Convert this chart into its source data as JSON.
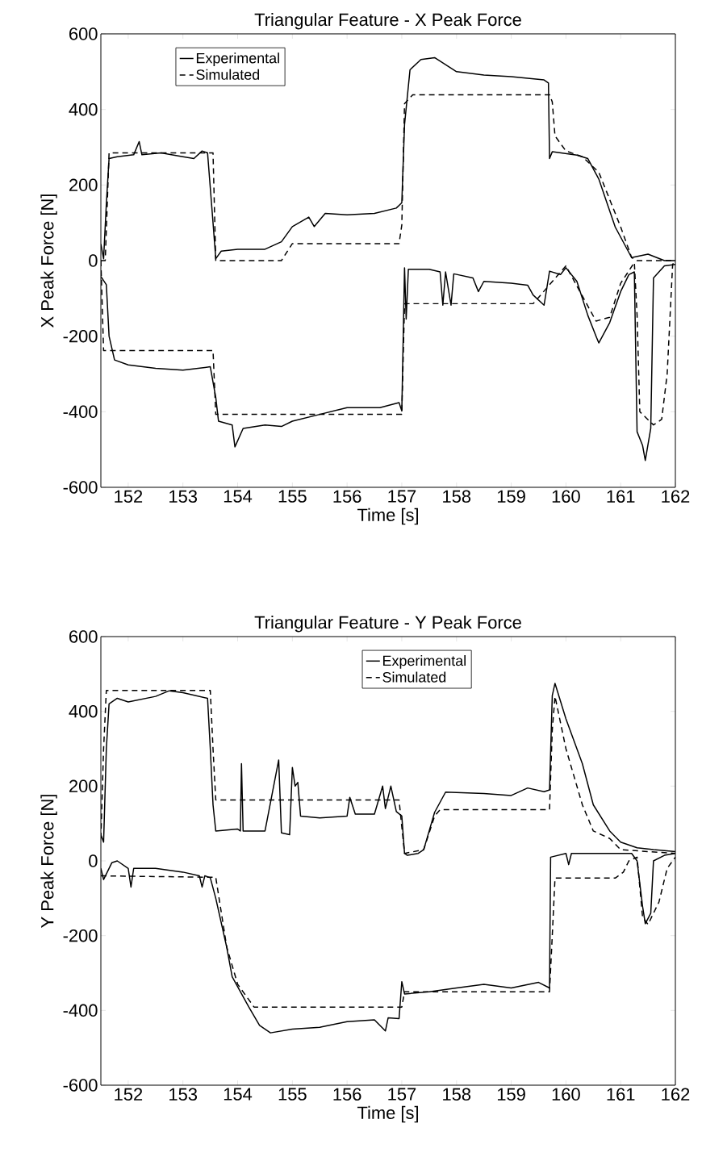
{
  "chart_data": [
    {
      "type": "line",
      "title": "Triangular Feature - X Peak Force",
      "xlabel": "Time [s]",
      "ylabel": "X Peak Force [N]",
      "xlim": [
        151.5,
        162
      ],
      "ylim": [
        -600,
        600
      ],
      "xticks": [
        152,
        153,
        154,
        155,
        156,
        157,
        158,
        159,
        160,
        161,
        162
      ],
      "yticks": [
        -600,
        -400,
        -200,
        0,
        200,
        400,
        600
      ],
      "legend": "top left",
      "grid": false,
      "series": [
        {
          "name": "Experimental",
          "color": "#000000",
          "line_style": "solid",
          "x": [
            151.5,
            151.55,
            151.6,
            151.65,
            151.8,
            152.1,
            152.2,
            152.25,
            152.6,
            153.0,
            153.2,
            153.35,
            153.45,
            153.55,
            153.6,
            153.7,
            154.0,
            154.5,
            154.8,
            155.0,
            155.3,
            155.4,
            155.6,
            156.0,
            156.5,
            156.9,
            157.0,
            157.05,
            157.15,
            157.35,
            157.6,
            158.0,
            158.5,
            159.0,
            159.6,
            159.68,
            159.7,
            159.75,
            160.2,
            160.4,
            160.6,
            160.9,
            161.2,
            161.5,
            161.8,
            162.0
          ],
          "values": [
            44,
            5,
            150,
            270,
            275,
            280,
            315,
            280,
            285,
            275,
            270,
            290,
            285,
            100,
            5,
            25,
            30,
            30,
            50,
            90,
            115,
            90,
            125,
            121,
            125,
            139,
            153,
            360,
            505,
            532,
            537,
            500,
            491,
            487,
            478,
            470,
            270,
            288,
            279,
            270,
            216,
            89,
            8,
            17,
            0,
            0
          ]
        },
        {
          "color": "#000000",
          "line_style": "solid",
          "x": [
            151.5,
            151.6,
            151.65,
            151.75,
            152.0,
            152.5,
            153.0,
            153.5,
            153.6,
            153.65,
            153.9,
            153.95,
            154.1,
            154.5,
            154.8,
            155.0,
            155.5,
            156.0,
            156.6,
            156.95,
            157.0,
            157.05,
            157.08,
            157.12,
            157.5,
            157.7,
            157.75,
            157.8,
            157.9,
            157.95,
            158.3,
            158.4,
            158.5,
            159.0,
            159.3,
            159.4,
            159.6,
            159.7,
            159.9,
            160.0,
            160.2,
            160.4,
            160.55,
            160.6,
            160.8,
            161.0,
            161.15,
            161.25,
            161.3,
            161.4,
            161.45,
            161.55,
            161.6,
            161.8,
            162.0
          ],
          "values": [
            -42,
            -64,
            -200,
            -263,
            -276,
            -285,
            -290,
            -281,
            -362,
            -425,
            -435,
            -493,
            -444,
            -435,
            -439,
            -425,
            -407,
            -389,
            -389,
            -376,
            -398,
            -19,
            -155,
            -23,
            -23,
            -30,
            -118,
            -30,
            -118,
            -35,
            -46,
            -82,
            -55,
            -60,
            -65,
            -91,
            -118,
            -28,
            -37,
            -19,
            -55,
            -145,
            -200,
            -218,
            -164,
            -82,
            -37,
            -30,
            -453,
            -489,
            -529,
            -444,
            -46,
            -14,
            -10
          ]
        },
        {
          "name": "Simulated",
          "color": "#000000",
          "line_style": "dashed",
          "x": [
            151.5,
            151.58,
            151.65,
            153.55,
            153.6,
            154.8,
            155.0,
            156.95,
            157.0,
            157.05,
            157.2,
            159.7,
            159.75,
            159.8,
            160.0,
            160.3,
            160.6,
            161.0,
            161.2,
            161.3,
            162.0
          ],
          "values": [
            0,
            0,
            285,
            285,
            0,
            0,
            45,
            45,
            94,
            415,
            439,
            439,
            420,
            330,
            290,
            275,
            234,
            89,
            8,
            0,
            0
          ]
        },
        {
          "color": "#000000",
          "line_style": "dashed",
          "x": [
            151.5,
            151.55,
            153.55,
            153.6,
            157.0,
            157.05,
            159.4,
            160.0,
            160.55,
            160.8,
            161.0,
            161.25,
            161.3,
            161.35,
            161.6,
            161.75,
            161.85,
            161.95,
            162.0
          ],
          "values": [
            0,
            -238,
            -238,
            -407,
            -407,
            -114,
            -114,
            -14,
            -160,
            -150,
            -60,
            -5,
            -145,
            -400,
            -435,
            -420,
            -300,
            -10,
            0
          ]
        }
      ]
    },
    {
      "type": "line",
      "title": "Triangular Feature -  Y Peak Force",
      "xlabel": "Time [s]",
      "ylabel": "Y Peak Force [N]",
      "xlim": [
        151.5,
        162
      ],
      "ylim": [
        -600,
        600
      ],
      "xticks": [
        152,
        153,
        154,
        155,
        156,
        157,
        158,
        159,
        160,
        161,
        162
      ],
      "yticks": [
        -600,
        -400,
        -200,
        0,
        200,
        400,
        600
      ],
      "legend": "top",
      "grid": false,
      "series": [
        {
          "name": "Experimental",
          "color": "#000000",
          "line_style": "solid",
          "x": [
            151.5,
            151.55,
            151.6,
            151.65,
            151.8,
            152.0,
            152.5,
            152.75,
            153.0,
            153.3,
            153.45,
            153.5,
            153.55,
            153.6,
            154.0,
            154.05,
            154.07,
            154.1,
            154.5,
            154.75,
            154.8,
            154.95,
            155.0,
            155.05,
            155.1,
            155.15,
            155.5,
            156.0,
            156.05,
            156.15,
            156.5,
            156.65,
            156.7,
            156.8,
            156.9,
            157.0,
            157.05,
            157.1,
            157.3,
            157.4,
            157.6,
            157.8,
            158.5,
            159.0,
            159.3,
            159.6,
            159.7,
            159.75,
            159.8,
            160.0,
            160.3,
            160.5,
            160.8,
            161.0,
            161.3,
            161.6,
            162.0
          ],
          "values": [
            70,
            50,
            300,
            420,
            435,
            425,
            440,
            455,
            450,
            440,
            435,
            300,
            150,
            80,
            85,
            80,
            260,
            80,
            80,
            270,
            75,
            70,
            250,
            200,
            210,
            120,
            115,
            120,
            170,
            125,
            125,
            200,
            140,
            200,
            132,
            120,
            20,
            15,
            20,
            30,
            130,
            184,
            180,
            175,
            195,
            185,
            190,
            442,
            475,
            380,
            260,
            150,
            80,
            50,
            35,
            30,
            25
          ]
        },
        {
          "color": "#000000",
          "line_style": "solid",
          "x": [
            151.5,
            151.55,
            151.7,
            151.8,
            152.0,
            152.05,
            152.1,
            152.5,
            153.0,
            153.3,
            153.35,
            153.4,
            153.5,
            153.6,
            153.8,
            153.9,
            154.2,
            154.4,
            154.6,
            155.0,
            155.5,
            156.0,
            156.5,
            156.7,
            156.75,
            156.95,
            157.0,
            157.05,
            157.5,
            158.0,
            158.5,
            159.0,
            159.5,
            159.7,
            159.72,
            160.0,
            160.05,
            160.1,
            161.0,
            161.2,
            161.3,
            161.4,
            161.45,
            161.55,
            161.6,
            161.8,
            162.0
          ],
          "values": [
            -20,
            -50,
            -5,
            0,
            -20,
            -70,
            -20,
            -20,
            -30,
            -40,
            -70,
            -40,
            -45,
            -100,
            -231,
            -310,
            -390,
            -440,
            -460,
            -450,
            -445,
            -430,
            -425,
            -455,
            -420,
            -422,
            -323,
            -356,
            -350,
            -340,
            -330,
            -340,
            -325,
            -340,
            10,
            20,
            -10,
            20,
            20,
            20,
            0,
            -121,
            -168,
            -140,
            0,
            15,
            20
          ]
        },
        {
          "name": "Simulated",
          "color": "#000000",
          "line_style": "dashed",
          "x": [
            151.5,
            151.55,
            151.6,
            153.5,
            153.55,
            153.6,
            156.95,
            157.05,
            157.4,
            157.6,
            157.7,
            159.7,
            159.75,
            159.8,
            160.0,
            160.3,
            160.5,
            160.8,
            161.0,
            162.0
          ],
          "values": [
            60,
            300,
            456,
            456,
            300,
            163,
            163,
            20,
            30,
            120,
            137,
            137,
            350,
            440,
            300,
            150,
            80,
            60,
            30,
            20
          ]
        },
        {
          "color": "#000000",
          "line_style": "dashed",
          "x": [
            151.5,
            153.6,
            153.8,
            154.0,
            154.3,
            157.0,
            157.05,
            159.7,
            159.75,
            159.8,
            160.9,
            161.05,
            161.15,
            161.3,
            161.4,
            161.5,
            161.7,
            161.85,
            162.0
          ],
          "values": [
            -40,
            -44,
            -230,
            -330,
            -391,
            -391,
            -350,
            -350,
            -200,
            -46,
            -46,
            -30,
            0,
            10,
            -150,
            -170,
            -110,
            -20,
            10
          ]
        }
      ]
    }
  ]
}
